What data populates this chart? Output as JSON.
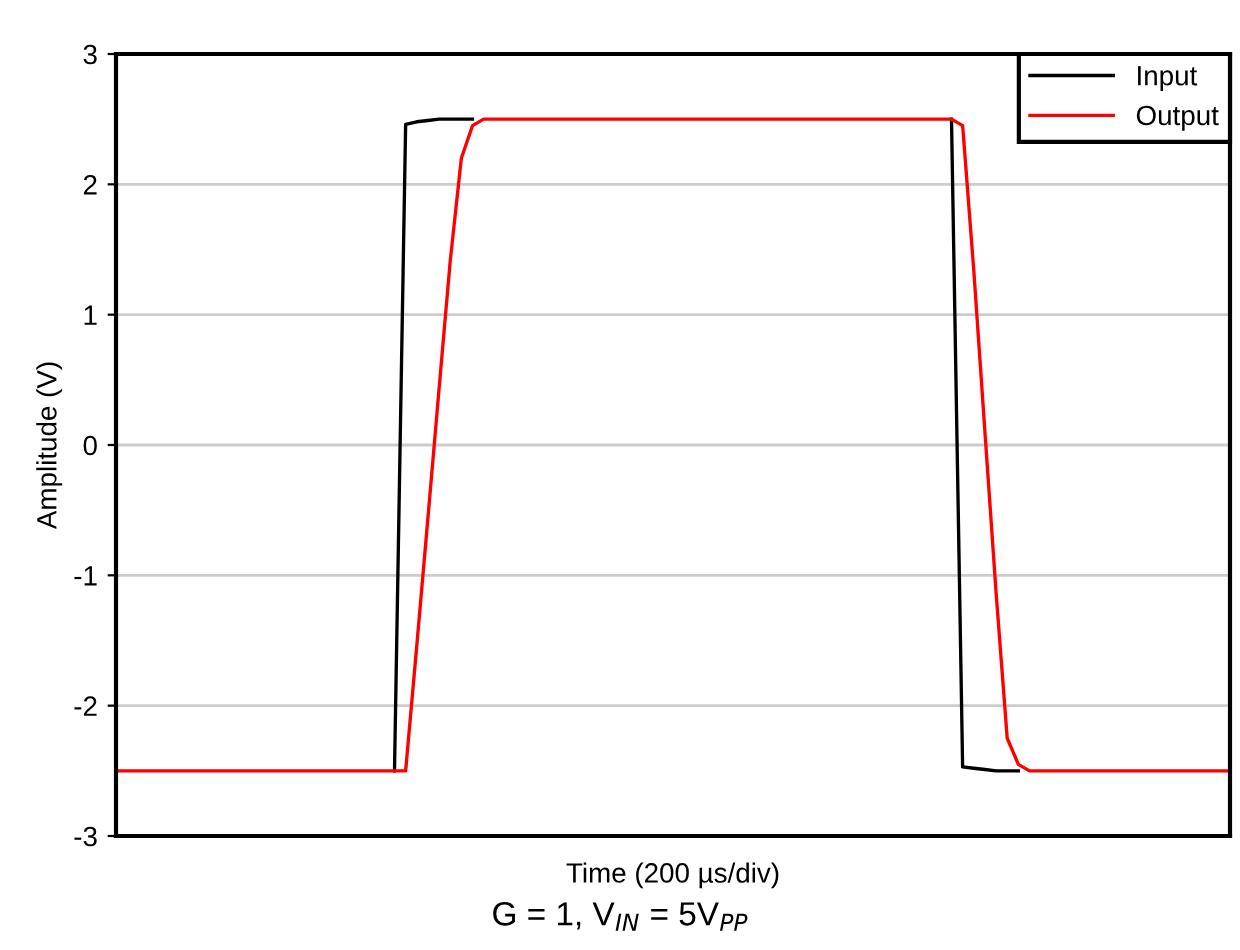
{
  "chart_data": {
    "type": "line",
    "xlabel": "Time (200 µs/div)",
    "ylabel": "Amplitude (V)",
    "annotations": [
      "G = 1, V$_{IN}$ = 5V$_{PP}$"
    ],
    "categories": [
      null,
      null,
      null,
      null,
      null,
      null,
      null,
      null,
      null,
      null,
      null,
      null,
      null,
      null,
      null,
      null,
      null,
      null,
      null,
      null,
      null,
      null,
      null,
      null,
      null,
      null,
      null,
      null,
      null,
      null,
      null,
      null,
      null,
      null,
      null,
      null,
      null,
      null,
      null,
      null,
      null,
      null,
      null,
      null,
      null,
      null,
      null,
      null,
      null,
      null,
      null,
      null,
      null,
      null,
      null,
      null,
      null,
      null,
      null,
      null,
      null,
      null,
      null,
      null,
      null,
      null,
      null,
      null,
      null,
      null,
      null,
      null,
      null,
      null,
      null,
      null,
      null,
      null,
      null,
      null,
      null,
      null,
      null,
      null,
      null,
      null,
      null,
      null,
      null,
      null,
      null,
      null,
      null,
      null,
      null,
      null,
      null,
      null,
      null,
      null,
      null
    ],
    "ylim": [
      -3,
      3
    ],
    "yticks": [
      -3,
      -2,
      -1,
      0,
      1,
      2,
      3
    ],
    "grid": "y",
    "legend": "top right",
    "series": [
      {
        "name": "Input",
        "color": "#000000",
        "values": [
          null,
          null,
          null,
          null,
          null,
          null,
          null,
          null,
          null,
          null,
          null,
          null,
          null,
          null,
          null,
          null,
          null,
          null,
          null,
          null,
          null,
          null,
          null,
          null,
          null,
          -2.5,
          2.46,
          2.48,
          2.49,
          2.5,
          2.5,
          2.5,
          2.5,
          null,
          null,
          null,
          null,
          null,
          null,
          null,
          null,
          null,
          null,
          null,
          null,
          null,
          null,
          null,
          null,
          null,
          null,
          null,
          null,
          null,
          null,
          null,
          null,
          null,
          null,
          null,
          null,
          null,
          null,
          null,
          null,
          null,
          null,
          null,
          null,
          null,
          null,
          null,
          null,
          null,
          null,
          2.5,
          -2.47,
          -2.48,
          -2.49,
          -2.5,
          -2.5,
          -2.5,
          null,
          null,
          null,
          null,
          null,
          null,
          null,
          null,
          null,
          null,
          null,
          null,
          null,
          null,
          null,
          null,
          null,
          null,
          null
        ]
      },
      {
        "name": "Output",
        "color": "#ff0000",
        "values": [
          -2.5,
          -2.5,
          -2.5,
          -2.5,
          -2.5,
          -2.5,
          -2.5,
          -2.5,
          -2.5,
          -2.5,
          -2.5,
          -2.5,
          -2.5,
          -2.5,
          -2.5,
          -2.5,
          -2.5,
          -2.5,
          -2.5,
          -2.5,
          -2.5,
          -2.5,
          -2.5,
          -2.5,
          -2.5,
          -2.5,
          -2.5,
          -1.54,
          -0.56,
          0.43,
          1.41,
          2.2,
          2.45,
          2.5,
          2.5,
          2.5,
          2.5,
          2.5,
          2.5,
          2.5,
          2.5,
          2.5,
          2.5,
          2.5,
          2.5,
          2.5,
          2.5,
          2.5,
          2.5,
          2.5,
          2.5,
          2.5,
          2.5,
          2.5,
          2.5,
          2.5,
          2.5,
          2.5,
          2.5,
          2.5,
          2.5,
          2.5,
          2.5,
          2.5,
          2.5,
          2.5,
          2.5,
          2.5,
          2.5,
          2.5,
          2.5,
          2.5,
          2.5,
          2.5,
          2.5,
          2.5,
          2.45,
          1.34,
          0.1,
          -1.13,
          -2.25,
          -2.45,
          -2.5,
          -2.5,
          -2.5,
          -2.5,
          -2.5,
          -2.5,
          -2.5,
          -2.5,
          -2.5,
          -2.5,
          -2.5,
          -2.5,
          -2.5,
          -2.5,
          -2.5,
          -2.5,
          -2.5,
          -2.5,
          -2.5
        ]
      }
    ]
  }
}
